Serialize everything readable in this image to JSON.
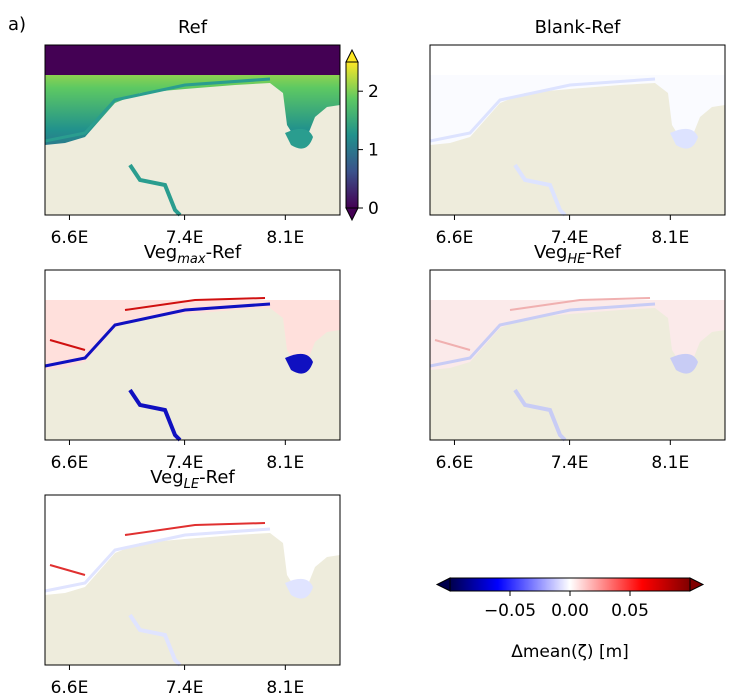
{
  "figure": {
    "panel_label": "a)",
    "map_xlim": [
      6.43,
      8.48
    ],
    "map_xticks": [
      {
        "value": 6.6,
        "label": "6.6E"
      },
      {
        "value": 7.4,
        "label": "7.4E"
      },
      {
        "value": 8.1,
        "label": "8.1E"
      }
    ],
    "panels": [
      {
        "title": "Ref"
      },
      {
        "title": "Blank-Ref"
      },
      {
        "title": "Veg",
        "title_sub": "max",
        "title_suffix": "-Ref"
      },
      {
        "title": "Veg",
        "title_sub": "HE",
        "title_suffix": "-Ref"
      },
      {
        "title": "Veg",
        "title_sub": "LE",
        "title_suffix": "-Ref"
      }
    ],
    "ref_colorbar": {
      "lim": [
        0,
        2.5
      ],
      "ticks": [
        0,
        1,
        2
      ]
    },
    "diff_colorbar": {
      "lim": [
        -0.1,
        0.1
      ],
      "ticks": [
        {
          "value": -0.05,
          "label": "−0.05"
        },
        {
          "value": 0,
          "label": "0.00"
        },
        {
          "value": 0.05,
          "label": "0.05"
        }
      ],
      "label": "Δmean(ζ) [m]"
    }
  }
}
